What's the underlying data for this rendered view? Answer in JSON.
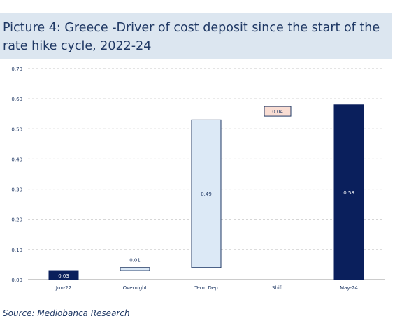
{
  "title": "Picture 4: Greece -Driver of cost deposit since the start of the rate hike cycle, 2022-24",
  "source": "Source: Mediobanca Research",
  "chart_data": {
    "type": "bar",
    "subtype": "waterfall",
    "categories": [
      "Jun-22",
      "Overnight",
      "Term Dep",
      "Shift",
      "May-24"
    ],
    "base": [
      0,
      0.03,
      0.04,
      0.53,
      0
    ],
    "values": [
      0.03,
      0.01,
      0.49,
      0.04,
      0.58
    ],
    "labels": [
      "0.03",
      "0.01",
      "0.49",
      "0.04",
      "0.58"
    ],
    "label_position": [
      "inside",
      "above",
      "inside",
      "inside",
      "inside"
    ],
    "colors": [
      "#0a1f5c",
      "#dce9f6",
      "#dce9f6",
      "#f9ddd3",
      "#0a1f5c"
    ],
    "border_colors": [
      "#0a1f5c",
      "#1f3864",
      "#1f3864",
      "#1f3864",
      "#0a1f5c"
    ],
    "ylim": [
      0,
      0.7
    ],
    "yticks": [
      "0.00",
      "0.10",
      "0.20",
      "0.30",
      "0.40",
      "0.50",
      "0.60",
      "0.70"
    ],
    "grid": true,
    "xlabel": "",
    "ylabel": ""
  }
}
